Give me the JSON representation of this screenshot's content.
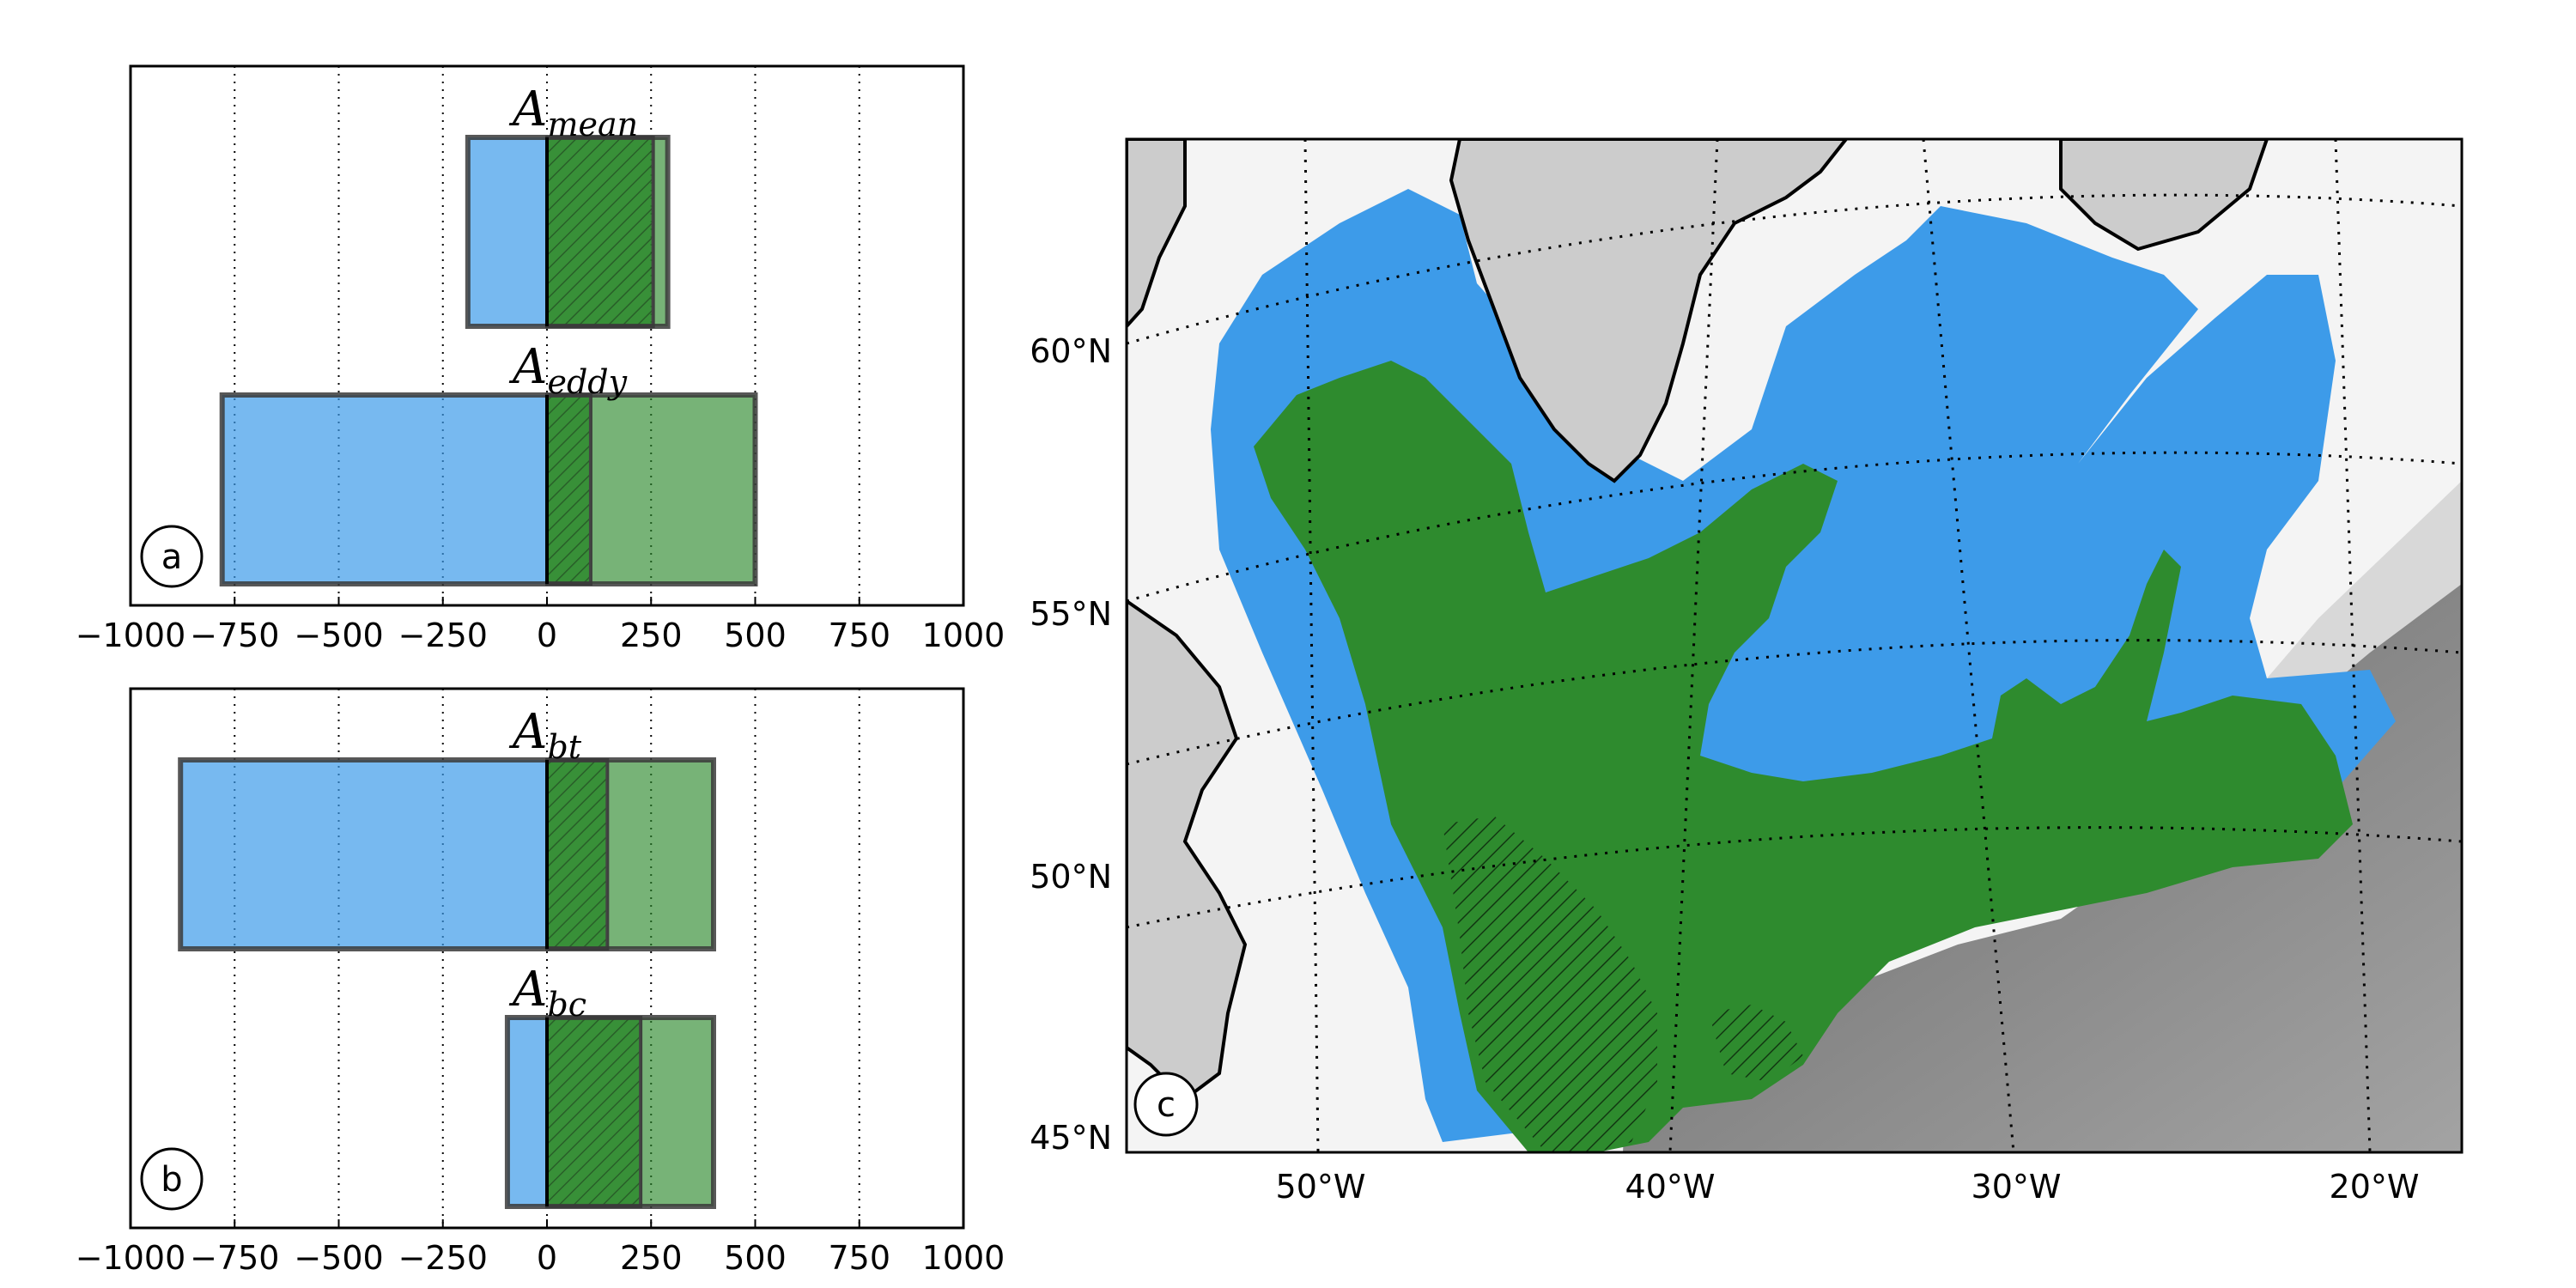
{
  "colors": {
    "blue": "#3d9be9",
    "green": "#2e8b2e",
    "land": "#cccccc",
    "edge": "#3a3a3a"
  },
  "chart_data": [
    {
      "panel": "a",
      "type": "bar",
      "orientation": "horizontal",
      "xlim": [
        -1000,
        1000
      ],
      "xticks": [
        -1000,
        -750,
        -500,
        -250,
        0,
        250,
        500,
        750,
        1000
      ],
      "xtick_labels": [
        "−1000",
        "−750",
        "−500",
        "−250",
        "0",
        "250",
        "500",
        "750",
        "1000"
      ],
      "grid": "vertical dotted",
      "rows": [
        {
          "label_base": "A",
          "label_sub": "mean",
          "blue_outline": [
            -190,
            290
          ],
          "blue_fill": [
            -190,
            0
          ],
          "green_hatched": [
            0,
            255
          ],
          "green_plain": [
            255,
            290
          ]
        },
        {
          "label_base": "A",
          "label_sub": "eddy",
          "blue_outline": [
            -780,
            500
          ],
          "blue_fill": [
            -780,
            0
          ],
          "green_hatched": [
            0,
            105
          ],
          "green_plain": [
            105,
            500
          ]
        }
      ]
    },
    {
      "panel": "b",
      "type": "bar",
      "orientation": "horizontal",
      "xlim": [
        -1000,
        1000
      ],
      "xticks": [
        -1000,
        -750,
        -500,
        -250,
        0,
        250,
        500,
        750,
        1000
      ],
      "xtick_labels": [
        "−1000",
        "−750",
        "−500",
        "−250",
        "0",
        "250",
        "500",
        "750",
        "1000"
      ],
      "grid": "vertical dotted",
      "rows": [
        {
          "label_base": "A",
          "label_sub": "bt",
          "blue_outline": [
            -880,
            400
          ],
          "blue_fill": [
            -880,
            0
          ],
          "green_hatched": [
            0,
            145
          ],
          "green_plain": [
            145,
            400
          ]
        },
        {
          "label_base": "A",
          "label_sub": "bc",
          "blue_outline": [
            -95,
            400
          ],
          "blue_fill": [
            -95,
            0
          ],
          "green_hatched": [
            0,
            225
          ],
          "green_plain": [
            225,
            400
          ]
        }
      ]
    },
    {
      "panel": "c",
      "type": "map",
      "region": "North Atlantic (Labrador Sea / Irminger Sea)",
      "lon_labels": [
        "50°W",
        "40°W",
        "30°W",
        "20°W"
      ],
      "lat_labels": [
        "60°N",
        "55°N",
        "50°N",
        "45°N"
      ],
      "grid": "dotted graticule",
      "regions": [
        "blue",
        "green",
        "green-hatched"
      ]
    }
  ],
  "panels": {
    "a": {
      "letter": "a"
    },
    "b": {
      "letter": "b"
    },
    "c": {
      "letter": "c"
    }
  }
}
